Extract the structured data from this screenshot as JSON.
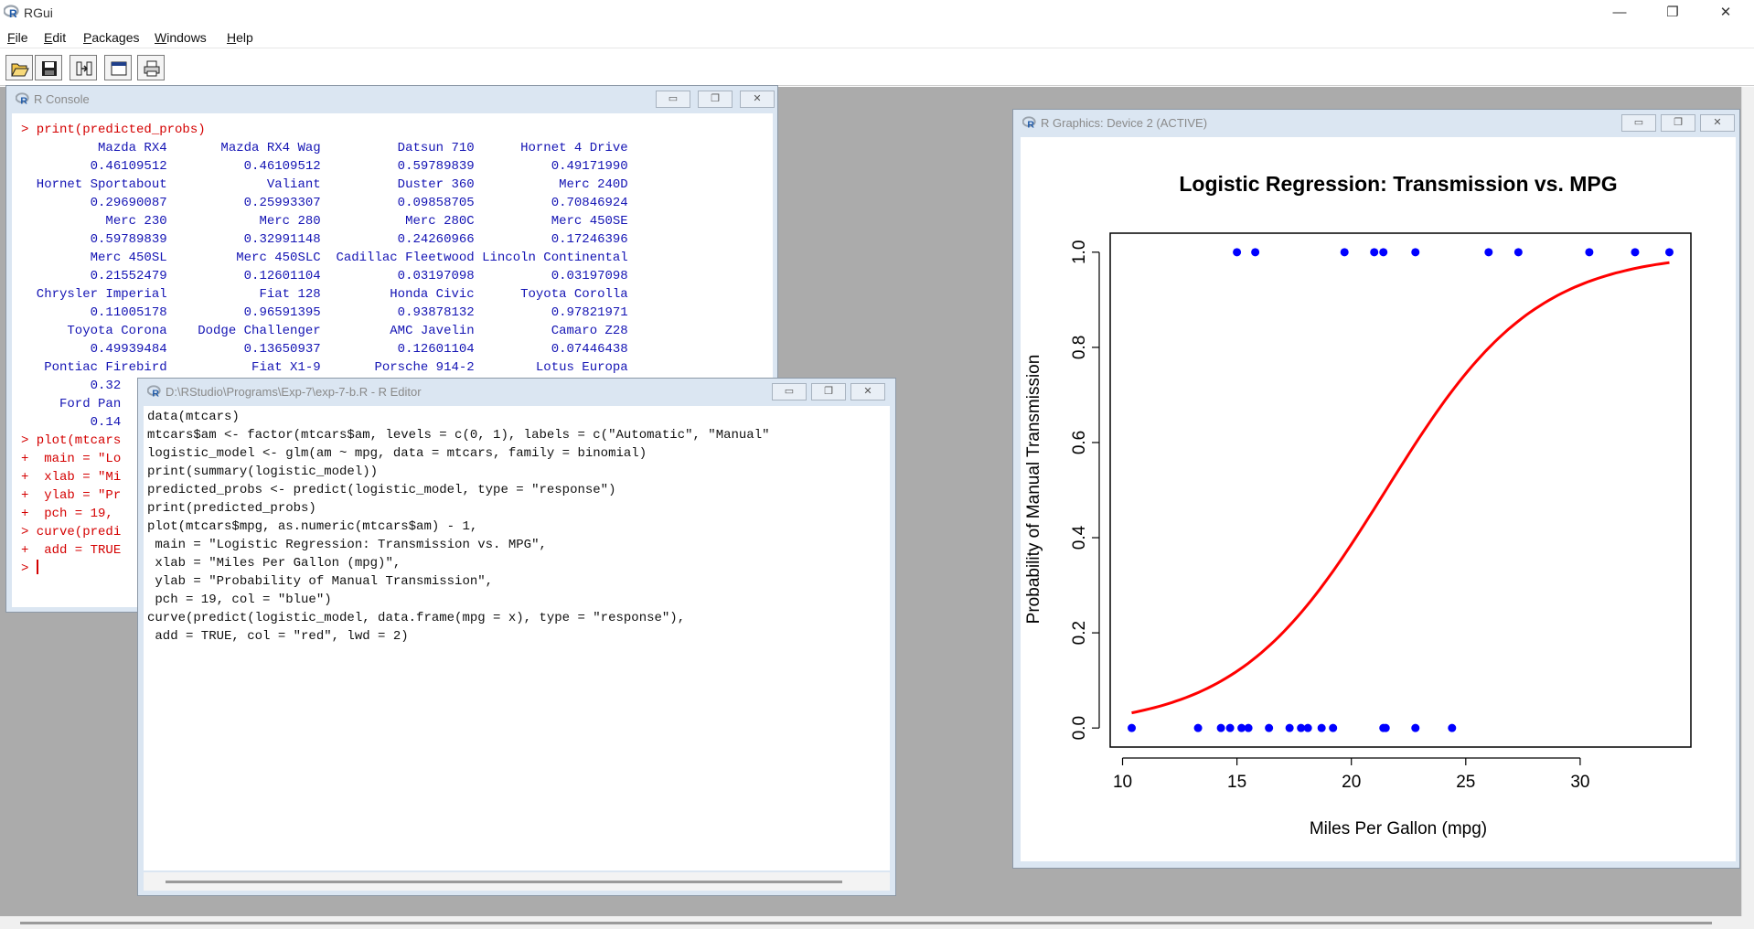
{
  "app": {
    "title": "RGui",
    "window_controls": {
      "minimize": "—",
      "maximize": "❐",
      "close": "✕"
    }
  },
  "menu": [
    {
      "label": "File",
      "key": "F",
      "rest": "ile"
    },
    {
      "label": "Edit",
      "key": "E",
      "rest": "dit"
    },
    {
      "label": "Packages",
      "key": "P",
      "rest": "ackages"
    },
    {
      "label": "Windows",
      "key": "W",
      "rest": "indows"
    },
    {
      "label": "Help",
      "key": "H",
      "rest": "elp"
    }
  ],
  "toolbar": {
    "buttons": [
      {
        "name": "open-script-button",
        "icon": "folder-open-icon"
      },
      {
        "name": "save-button",
        "icon": "floppy-disk-icon"
      },
      {
        "name": "paste-commands-button",
        "icon": "paste-icon"
      },
      {
        "name": "copy-paste-button",
        "icon": "window-icon"
      },
      {
        "name": "print-button",
        "icon": "printer-icon"
      }
    ]
  },
  "console": {
    "title": "R Console",
    "lines": [
      {
        "cls": "red",
        "text": "> print(predicted_probs)"
      },
      {
        "cls": "blue",
        "text": "          Mazda RX4       Mazda RX4 Wag          Datsun 710      Hornet 4 Drive"
      },
      {
        "cls": "blue",
        "text": "         0.46109512          0.46109512          0.59789839          0.49171990"
      },
      {
        "cls": "blue",
        "text": "  Hornet Sportabout             Valiant          Duster 360           Merc 240D"
      },
      {
        "cls": "blue",
        "text": "         0.29690087          0.25993307          0.09858705          0.70846924"
      },
      {
        "cls": "blue",
        "text": "           Merc 230            Merc 280           Merc 280C          Merc 450SE"
      },
      {
        "cls": "blue",
        "text": "         0.59789839          0.32991148          0.24260966          0.17246396"
      },
      {
        "cls": "blue",
        "text": "         Merc 450SL         Merc 450SLC  Cadillac Fleetwood Lincoln Continental"
      },
      {
        "cls": "blue",
        "text": "         0.21552479          0.12601104          0.03197098          0.03197098"
      },
      {
        "cls": "blue",
        "text": "  Chrysler Imperial            Fiat 128         Honda Civic      Toyota Corolla"
      },
      {
        "cls": "blue",
        "text": "         0.11005178          0.96591395          0.93878132          0.97821971"
      },
      {
        "cls": "blue",
        "text": "      Toyota Corona    Dodge Challenger         AMC Javelin          Camaro Z28"
      },
      {
        "cls": "blue",
        "text": "         0.49939484          0.13650937          0.12601104          0.07446438"
      },
      {
        "cls": "blue",
        "text": "   Pontiac Firebird           Fiat X1-9       Porsche 914-2        Lotus Europa"
      },
      {
        "cls": "blue",
        "text": "         0.32"
      },
      {
        "cls": "blue",
        "text": "     Ford Pan"
      },
      {
        "cls": "blue",
        "text": "         0.14"
      },
      {
        "cls": "red",
        "text": "> plot(mtcars"
      },
      {
        "cls": "red",
        "text": "+  main = \"Lo"
      },
      {
        "cls": "red",
        "text": "+  xlab = \"Mi"
      },
      {
        "cls": "red",
        "text": "+  ylab = \"Pr"
      },
      {
        "cls": "red",
        "text": "+  pch = 19, "
      },
      {
        "cls": "red",
        "text": "> curve(predi"
      },
      {
        "cls": "red",
        "text": "+  add = TRUE"
      }
    ],
    "prompt": "> "
  },
  "editor": {
    "title": "D:\\RStudio\\Programs\\Exp-7\\exp-7-b.R - R Editor",
    "lines": [
      "data(mtcars)",
      "mtcars$am <- factor(mtcars$am, levels = c(0, 1), labels = c(\"Automatic\", \"Manual\"",
      "logistic_model <- glm(am ~ mpg, data = mtcars, family = binomial)",
      "print(summary(logistic_model))",
      "predicted_probs <- predict(logistic_model, type = \"response\")",
      "print(predicted_probs)",
      "plot(mtcars$mpg, as.numeric(mtcars$am) - 1,",
      " main = \"Logistic Regression: Transmission vs. MPG\",",
      " xlab = \"Miles Per Gallon (mpg)\",",
      " ylab = \"Probability of Manual Transmission\",",
      " pch = 19, col = \"blue\")",
      "curve(predict(logistic_model, data.frame(mpg = x), type = \"response\"),",
      " add = TRUE, col = \"red\", lwd = 2)"
    ]
  },
  "graphics": {
    "title": "R Graphics: Device 2 (ACTIVE)"
  },
  "chart_data": {
    "type": "scatter",
    "title": "Logistic Regression: Transmission vs. MPG",
    "xlabel": "Miles Per Gallon (mpg)",
    "ylabel": "Probability of Manual Transmission",
    "xlim": [
      10.4,
      33.9
    ],
    "ylim": [
      0,
      1
    ],
    "x_ticks": [
      10,
      15,
      20,
      25,
      30
    ],
    "y_ticks": [
      "0.0",
      "0.2",
      "0.4",
      "0.6",
      "0.8",
      "1.0"
    ],
    "grid": false,
    "point_color": "#0000ff",
    "curve_color": "#ff0000",
    "series": [
      {
        "kind": "points",
        "points": [
          [
            15.0,
            1
          ],
          [
            15.8,
            1
          ],
          [
            19.7,
            1
          ],
          [
            21.0,
            1
          ],
          [
            21.4,
            1
          ],
          [
            22.8,
            1
          ],
          [
            26.0,
            1
          ],
          [
            27.3,
            1
          ],
          [
            30.4,
            1
          ],
          [
            32.4,
            1
          ],
          [
            33.9,
            1
          ],
          [
            10.4,
            0
          ],
          [
            13.3,
            0
          ],
          [
            14.3,
            0
          ],
          [
            14.7,
            0
          ],
          [
            15.2,
            0
          ],
          [
            15.5,
            0
          ],
          [
            16.4,
            0
          ],
          [
            17.3,
            0
          ],
          [
            17.8,
            0
          ],
          [
            18.1,
            0
          ],
          [
            18.7,
            0
          ],
          [
            19.2,
            0
          ],
          [
            21.4,
            0
          ],
          [
            21.5,
            0
          ],
          [
            22.8,
            0
          ],
          [
            24.4,
            0
          ]
        ]
      },
      {
        "kind": "curve",
        "model": "logistic",
        "intercept": -6.604,
        "slope": 0.307
      }
    ]
  }
}
